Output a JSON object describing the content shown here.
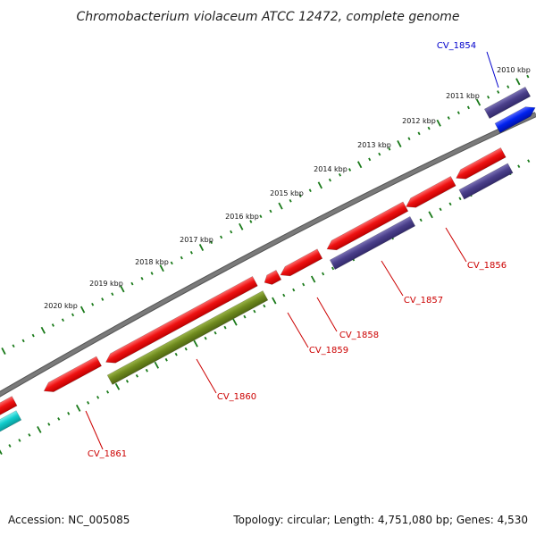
{
  "title": "Chromobacterium violaceum ATCC 12472, complete genome",
  "footer": {
    "accession": "Accession: NC_005085",
    "topology": "Topology: circular; Length: 4,751,080 bp; Genes: 4,530"
  },
  "ticks": [
    {
      "label": "2010 kbp"
    },
    {
      "label": "2011 kbp"
    },
    {
      "label": "2012 kbp"
    },
    {
      "label": "2013 kbp"
    },
    {
      "label": "2014 kbp"
    },
    {
      "label": "2015 kbp"
    },
    {
      "label": "2016 kbp"
    },
    {
      "label": "2017 kbp"
    },
    {
      "label": "2018 kbp"
    },
    {
      "label": "2019 kbp"
    },
    {
      "label": "2020 kbp"
    }
  ],
  "gene_labels": [
    {
      "text": "CV_1854",
      "color": "#0000cc"
    },
    {
      "text": "CV_1856",
      "color": "#cc0000"
    },
    {
      "text": "CV_1857",
      "color": "#cc0000"
    },
    {
      "text": "CV_1858",
      "color": "#cc0000"
    },
    {
      "text": "CV_1859",
      "color": "#cc0000"
    },
    {
      "text": "CV_1860",
      "color": "#cc0000"
    },
    {
      "text": "CV_1861",
      "color": "#cc0000"
    }
  ],
  "colors": {
    "backbone": "#7a7a7a",
    "tick_mark": "#1a7a1a",
    "gene_red": "#ee1111",
    "gene_navy": "#4a3f8a",
    "gene_blue": "#0022ee",
    "gene_olive": "#6f8a1e",
    "gene_cyan": "#11cccc"
  }
}
